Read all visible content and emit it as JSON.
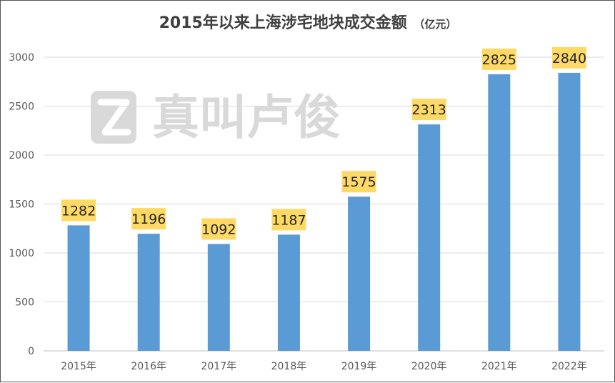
{
  "chart_data": {
    "type": "bar",
    "title": "2015年以来上海涉宅地块成交金额",
    "title_unit": "（亿元）",
    "categories": [
      "2015年",
      "2016年",
      "2017年",
      "2018年",
      "2019年",
      "2020年",
      "2021年",
      "2022年"
    ],
    "values": [
      1282,
      1196,
      1092,
      1187,
      1575,
      2313,
      2825,
      2840
    ],
    "data_labels": [
      "1282",
      "1196",
      "1092",
      "1187",
      "1575",
      "2313",
      "2825",
      "2840"
    ],
    "yticks": [
      "0",
      "500",
      "1000",
      "1500",
      "2000",
      "2500",
      "3000"
    ],
    "ylim": [
      0,
      3200
    ],
    "grid": true,
    "legend": "none",
    "bar_color": "#5b9bd5",
    "label_bg_color": "#ffd966",
    "watermark": "真叫卢俊"
  }
}
